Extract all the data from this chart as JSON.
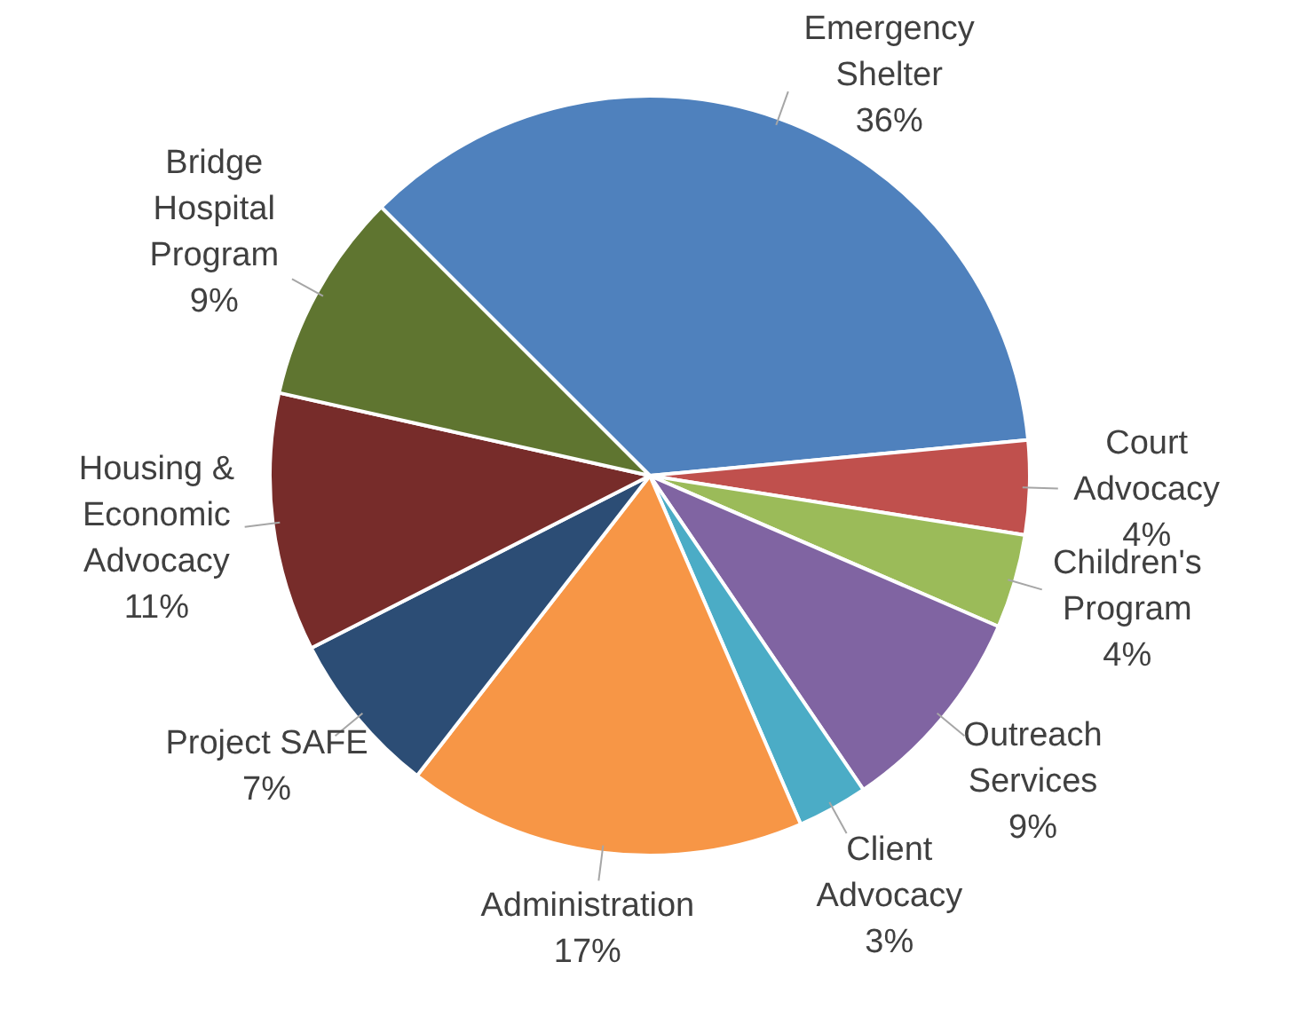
{
  "chart_data": {
    "type": "pie",
    "categories": [
      "Emergency Shelter",
      "Court Advocacy",
      "Children's Program",
      "Outreach Services",
      "Client Advocacy",
      "Administration",
      "Project SAFE",
      "Housing & Economic Advocacy",
      "Bridge Hospital Program"
    ],
    "values": [
      36,
      4,
      4,
      9,
      3,
      17,
      7,
      11,
      9
    ],
    "colors": [
      "#4f81bd",
      "#c0504d",
      "#9bbb59",
      "#8064a2",
      "#4bacc6",
      "#f79646",
      "#2c4d75",
      "#772c2a",
      "#5f7530"
    ],
    "value_labels": [
      "36%",
      "4%",
      "4%",
      "9%",
      "3%",
      "17%",
      "7%",
      "11%",
      "9%"
    ],
    "legend": false
  }
}
